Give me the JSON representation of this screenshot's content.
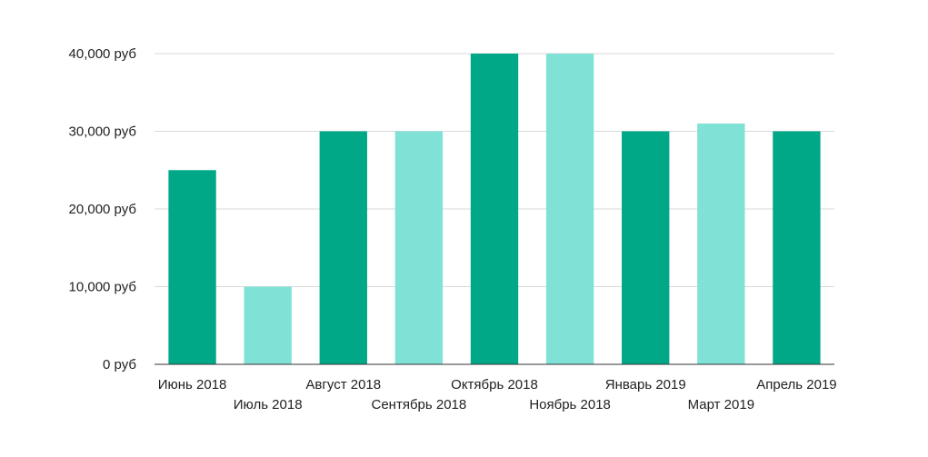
{
  "chart_data": {
    "type": "bar",
    "title": "",
    "xlabel": "",
    "ylabel": "",
    "ylim": [
      0,
      40000
    ],
    "yticks": [
      {
        "value": 0,
        "label": "0 руб"
      },
      {
        "value": 10000,
        "label": "10,000 руб"
      },
      {
        "value": 20000,
        "label": "20,000 руб"
      },
      {
        "value": 30000,
        "label": "30,000 руб"
      },
      {
        "value": 40000,
        "label": "40,000 руб"
      }
    ],
    "categories": [
      "Июнь 2018",
      "Июль 2018",
      "Август 2018",
      "Сентябрь 2018",
      "Октябрь 2018",
      "Ноябрь 2018",
      "Январь 2019",
      "Март 2019",
      "Апрель 2019"
    ],
    "values": [
      25000,
      10000,
      30000,
      30000,
      40000,
      40000,
      30000,
      31000,
      30000
    ],
    "colors": [
      "#00a887",
      "#80e1d6",
      "#00a887",
      "#80e1d6",
      "#00a887",
      "#80e1d6",
      "#00a887",
      "#80e1d6",
      "#00a887"
    ],
    "grid": true,
    "legend": "none"
  }
}
